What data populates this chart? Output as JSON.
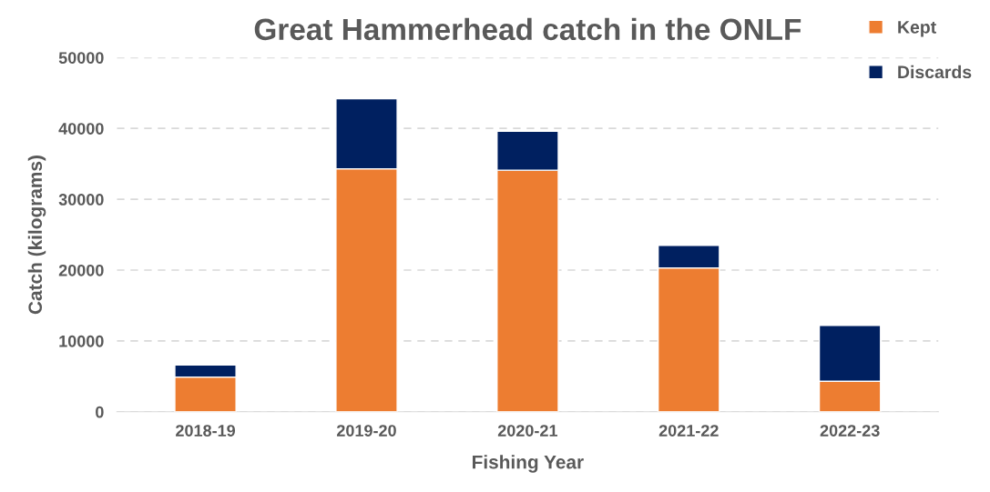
{
  "chart_data": {
    "type": "bar",
    "title": "Great Hammerhead catch in the ONLF",
    "xlabel": "Fishing Year",
    "ylabel": "Catch (kilograms)",
    "categories": [
      "2018-19",
      "2019-20",
      "2020-21",
      "2021-22",
      "2022-23"
    ],
    "series": [
      {
        "name": "Kept",
        "color": "#ed7d31",
        "values": [
          4900,
          34300,
          34100,
          20300,
          4300
        ]
      },
      {
        "name": "Discards",
        "color": "#002060",
        "values": [
          1700,
          9900,
          5500,
          3200,
          7900
        ]
      }
    ],
    "stacked": true,
    "ylim": [
      0,
      50000
    ],
    "yticks": [
      0,
      10000,
      20000,
      30000,
      40000,
      50000
    ],
    "grid": "y",
    "legend": "top right"
  }
}
